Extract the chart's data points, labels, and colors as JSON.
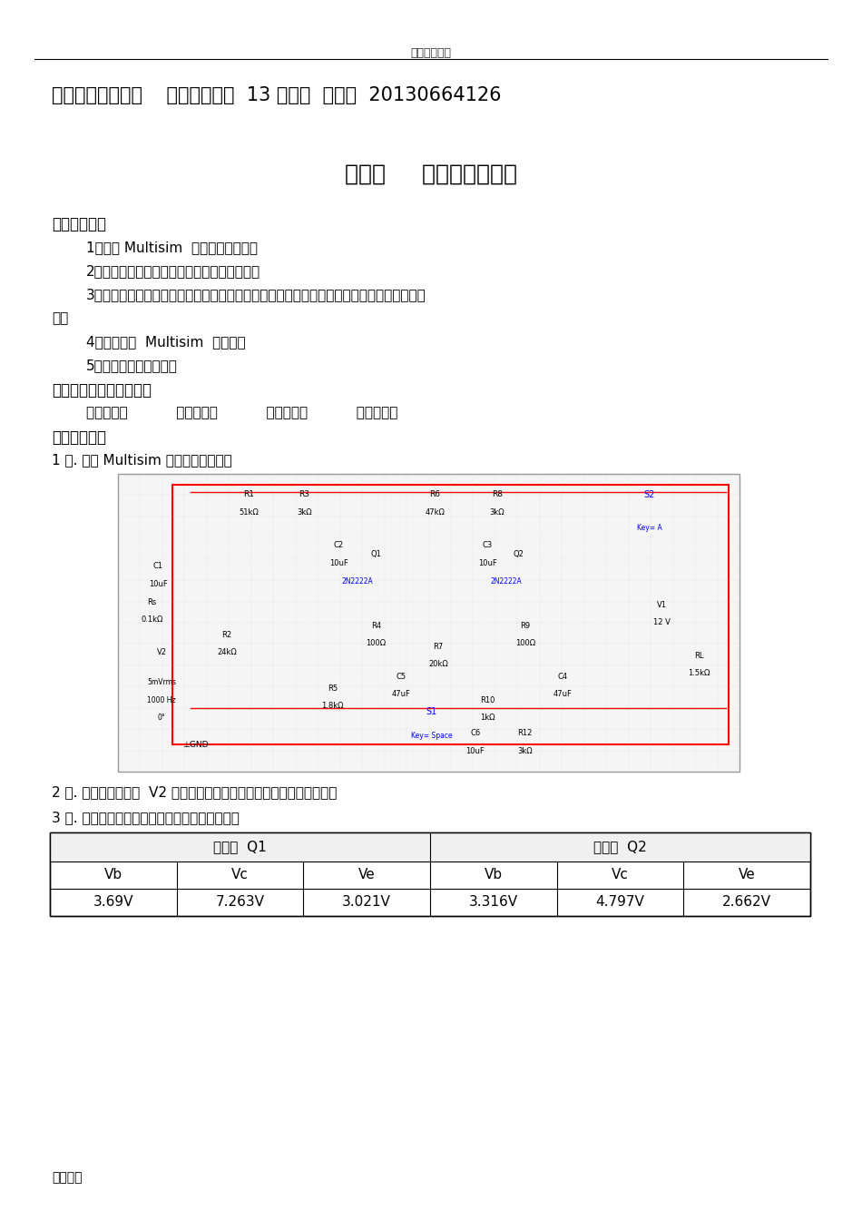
{
  "header_text": "实用标准文案",
  "title_line": "模电仿真实验报告    机电工程学院  13 物理学  李晓翠  20130664126",
  "exp_title": "实验三     负反馈放大电路",
  "section1": "一、实验目的",
  "item1": "1、熟悉 Multisim  软件的使用方法。",
  "item2": "2、掌握负反馈放大电路对放大器性能的影响。",
  "item3_a": "3、学习负反馈放大器静态工作点、电压放大倍数、输入电阻、输出电阻的开环和闭环仿真方",
  "item3_b": "法。",
  "item4": "4、学习掌握  Multisim  交流分析",
  "item5": "5、学会开关元件的使用",
  "section2": "二、虚拟实验仪器及器材",
  "equipment": "双踪示波器           信号发生器           交流毫伏表           数字万用表",
  "section3": "三、实验步骤",
  "step1": "1 、. 启动 Multisim ，并画出如下电路",
  "step2": "2 、. 调节信号发生器  V2 的大小，使输出端在开环情况下输出不失真。",
  "step3": "3 、. 启动直流工作点分析，记录数据，填入下表",
  "table_header1": "三极管  Q1",
  "table_header2": "三极管  Q2",
  "col_headers": [
    "Vb",
    "Vc",
    "Ve",
    "Vb",
    "Vc",
    "Ve"
  ],
  "row_data": [
    "3.69V",
    "7.263V",
    "3.021V",
    "3.316V",
    "4.797V",
    "2.662V"
  ],
  "footer": "精彩文档",
  "bg_color": "#ffffff",
  "text_color": "#000000"
}
